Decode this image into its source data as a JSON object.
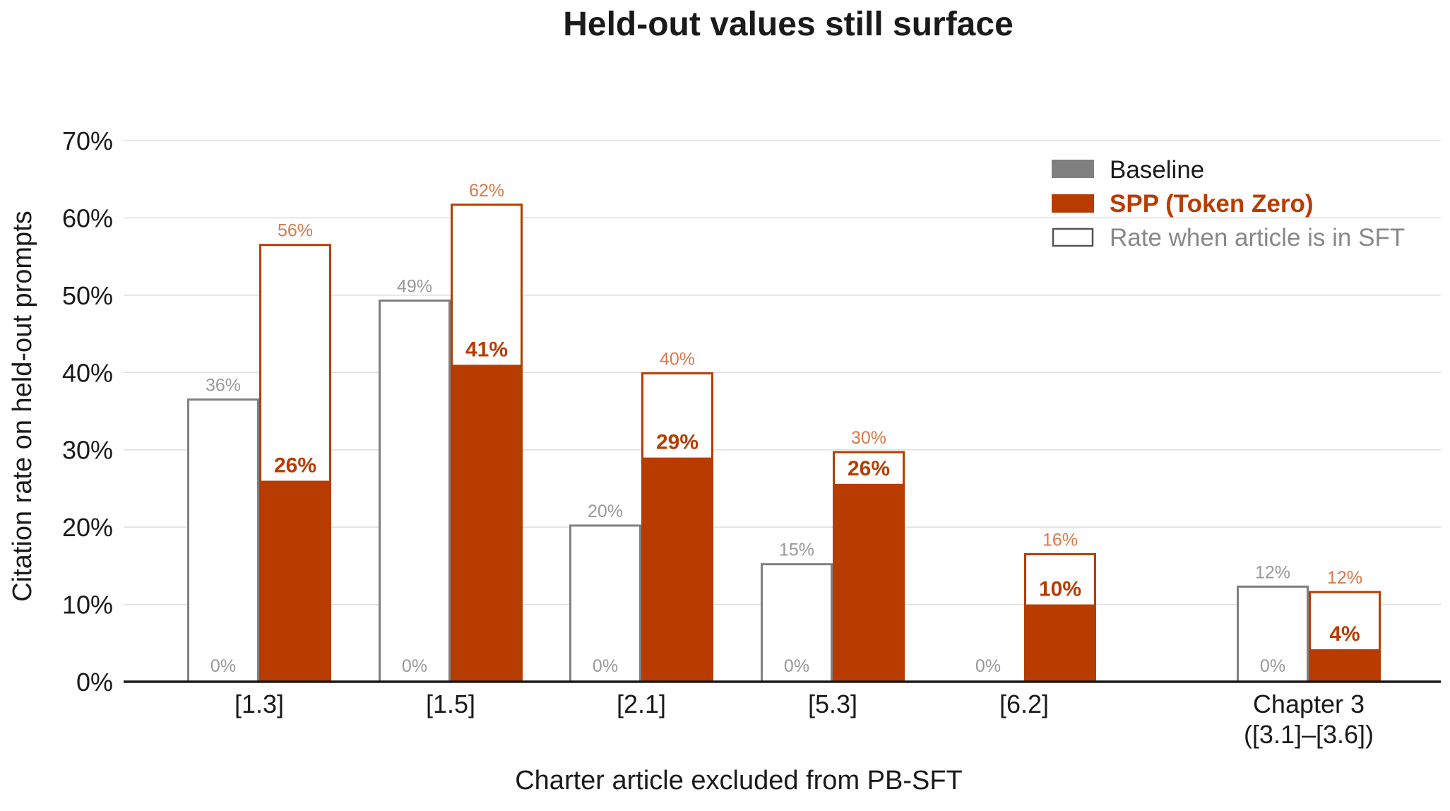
{
  "chart_data": {
    "type": "bar",
    "title": "Held-out values still surface",
    "xlabel": "Charter article excluded from PB-SFT",
    "ylabel": "Citation rate on held-out prompts",
    "ylim": [
      0,
      70
    ],
    "y_ticks": [
      "0%",
      "10%",
      "20%",
      "30%",
      "40%",
      "50%",
      "60%",
      "70%"
    ],
    "grid": true,
    "legend_position": "top-right",
    "categories": [
      [
        "[1.3]"
      ],
      [
        "[1.5]"
      ],
      [
        "[2.1]"
      ],
      [
        "[5.3]"
      ],
      [
        "[6.2]"
      ],
      [
        "Chapter 3",
        "([3.1]–[3.6])"
      ]
    ],
    "series": [
      {
        "name": "Baseline",
        "values": [
          0,
          0,
          0,
          0,
          0,
          0
        ],
        "value_labels": [
          "0%",
          "0%",
          "0%",
          "0%",
          "0%",
          "0%"
        ],
        "in_sft_values": [
          36.5,
          49.3,
          20.2,
          15.2,
          null,
          12.3
        ],
        "in_sft_labels": [
          "36%",
          "49%",
          "20%",
          "15%",
          null,
          "12%"
        ]
      },
      {
        "name": "SPP (Token Zero)",
        "values": [
          26.0,
          41.0,
          29.0,
          25.6,
          10.0,
          4.2
        ],
        "value_labels": [
          "26%",
          "41%",
          "29%",
          "26%",
          "10%",
          "4%"
        ],
        "in_sft_values": [
          56.5,
          61.7,
          39.9,
          29.7,
          16.5,
          11.6
        ],
        "in_sft_labels": [
          "56%",
          "62%",
          "40%",
          "30%",
          "16%",
          "12%"
        ]
      }
    ],
    "legend": {
      "baseline": "Baseline",
      "spp": "SPP (Token Zero)",
      "in_sft": "Rate when article is in SFT"
    },
    "colors": {
      "baseline": "#808080",
      "baseline_label": "#999999",
      "spp": "#b83c00",
      "spp_label_light": "#d9784a",
      "grid": "#dddddd",
      "axis": "#1a1a1a"
    }
  }
}
